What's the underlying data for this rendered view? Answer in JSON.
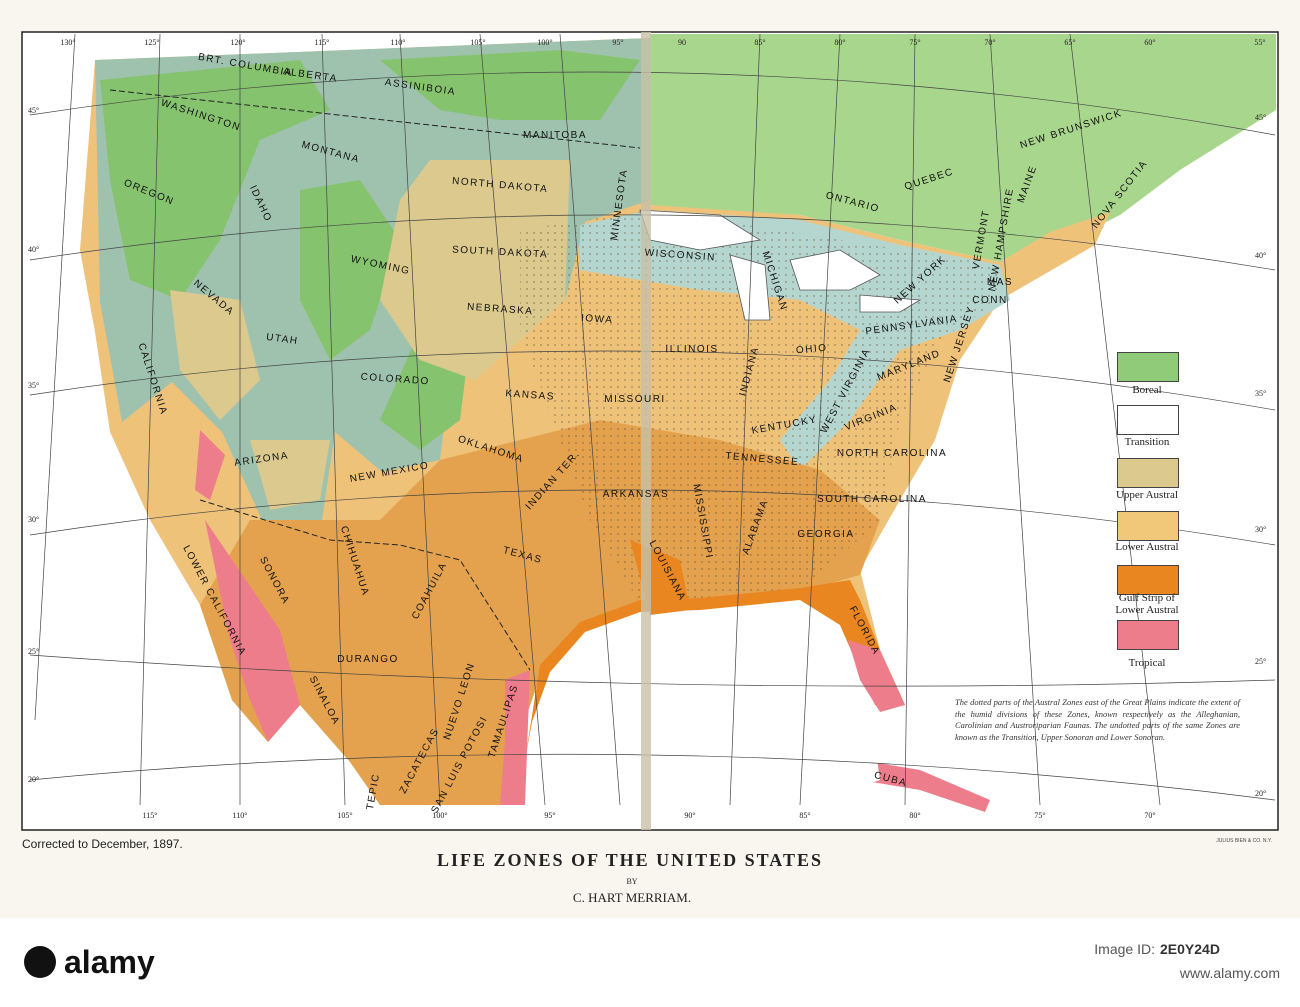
{
  "map": {
    "title": "LIFE ZONES OF THE UNITED STATES",
    "by": "BY",
    "author": "C. HART MERRIAM.",
    "corrected": "Corrected to December, 1897.",
    "printer": "JULIUS BIEN & CO. N.Y.",
    "legend": [
      {
        "label": "Boreal",
        "color": "#8fcb78"
      },
      {
        "label": "Transition",
        "color": "#ffffff"
      },
      {
        "label": "Upper Austral",
        "color": "#dcc98d"
      },
      {
        "label": "Lower Austral",
        "color": "#f1c77a"
      },
      {
        "label": "Gulf Strip of Lower Austral",
        "color": "#e9861f"
      },
      {
        "label": "Tropical",
        "color": "#ee7d8b"
      }
    ],
    "note": "The dotted parts of the Austral Zones east of the Great Plains indicate the extent of the humid divisions of these Zones, known respectively as the Alleghanian, Carolinian and Austroriparian Faunas. The undotted parts of the same Zones are known as the Transition, Upper Sonoran and Lower Sonoran.",
    "longitudes_top": [
      "130°",
      "125°",
      "120°",
      "115°",
      "110°",
      "105°",
      "100°",
      "95°",
      "90",
      "85°",
      "80°",
      "75°",
      "70°",
      "65°",
      "60°",
      "55°"
    ],
    "longitudes_bottom": [
      "115°",
      "110°",
      "105°",
      "100°",
      "95°",
      "90°",
      "85°",
      "80°",
      "75°",
      "70°"
    ],
    "latitudes_left": [
      "45°",
      "40°",
      "35°",
      "30°",
      "25°",
      "20°"
    ],
    "latitudes_right": [
      "45°",
      "40°",
      "35°",
      "30°",
      "25°",
      "20°"
    ],
    "regions": [
      "BRT. COLUMBIA",
      "ALBERTA",
      "ASSINIBOIA",
      "MANITOBA",
      "WASHINGTON",
      "MONTANA",
      "NORTH DAKOTA",
      "OREGON",
      "IDAHO",
      "WYOMING",
      "SOUTH DAKOTA",
      "MINNESOTA",
      "WISCONSIN",
      "NEBRASKA",
      "IOWA",
      "NEVADA",
      "UTAH",
      "COLORADO",
      "KANSAS",
      "MISSOURI",
      "ILLINOIS",
      "INDIANA",
      "OHIO",
      "CALIFORNIA",
      "ARIZONA",
      "NEW MEXICO",
      "OKLAHOMA",
      "INDIAN TER.",
      "ARKANSAS",
      "TENNESSEE",
      "KENTUCKY",
      "WEST VIRGINIA",
      "VIRGINIA",
      "NORTH CAROLINA",
      "SOUTH CAROLINA",
      "GEORGIA",
      "ALABAMA",
      "MISSISSIPPI",
      "LOUISIANA",
      "TEXAS",
      "FLORIDA",
      "CUBA",
      "MICHIGAN",
      "ONTARIO",
      "QUEBEC",
      "NEW BRUNSWICK",
      "NOVA SCOTIA",
      "NEW YORK",
      "PENNSYLVANIA",
      "VERMONT",
      "NEW HAMPSHIRE",
      "MAINE",
      "MAS",
      "CONN",
      "NEW JERSEY",
      "MARYLAND",
      "SONORA",
      "CHIHUAHUA",
      "LOWER CALIFORNIA",
      "COAHUILA",
      "NUEVO LEON",
      "DURANGO",
      "SINALOA",
      "TAMAULIPAS",
      "ZACATECAS",
      "SAN LUIS POTOSI",
      "TEPIC"
    ]
  },
  "watermark": {
    "brand": "alamy",
    "image_id_label": "Image ID:",
    "image_id": "2E0Y24D",
    "url": "www.alamy.com"
  }
}
